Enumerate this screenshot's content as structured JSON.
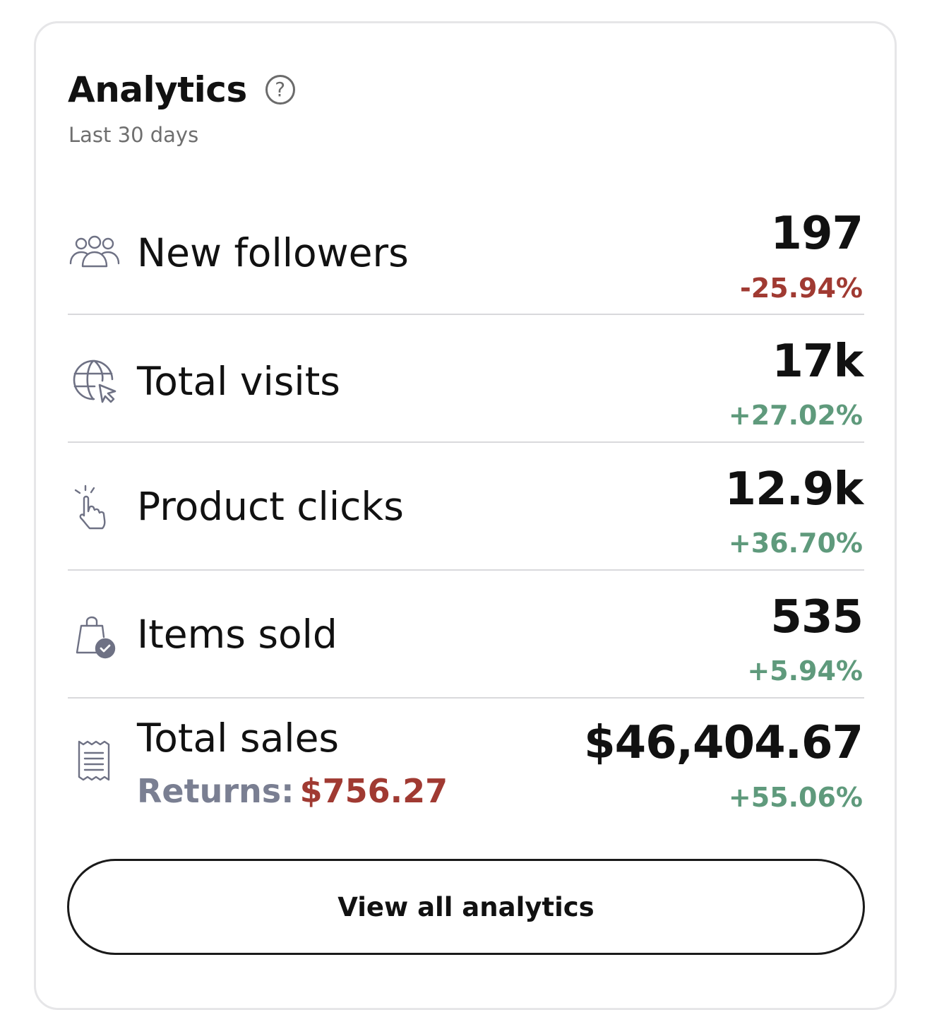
{
  "header": {
    "title": "Analytics",
    "help_icon": "question-circle-icon",
    "subtitle": "Last 30 days"
  },
  "metrics": [
    {
      "icon": "followers-icon",
      "label": "New followers",
      "value": "197",
      "change": "-25.94%",
      "trend": "negative"
    },
    {
      "icon": "globe-cursor-icon",
      "label": "Total visits",
      "value": "17k",
      "change": "+27.02%",
      "trend": "positive"
    },
    {
      "icon": "tap-hand-icon",
      "label": "Product clicks",
      "value": "12.9k",
      "change": "+36.70%",
      "trend": "positive"
    },
    {
      "icon": "shopping-bag-check-icon",
      "label": "Items sold",
      "value": "535",
      "change": "+5.94%",
      "trend": "positive"
    },
    {
      "icon": "receipt-icon",
      "label": "Total sales",
      "value": "$46,404.67",
      "change": "+55.06%",
      "trend": "positive",
      "returns_label": "Returns:",
      "returns_value": "$756.27"
    }
  ],
  "cta": {
    "label": "View all analytics"
  },
  "colors": {
    "negative": "#a03a32",
    "positive": "#5f9a7c",
    "icon": "#6e7184",
    "divider": "#d9d9dc"
  }
}
